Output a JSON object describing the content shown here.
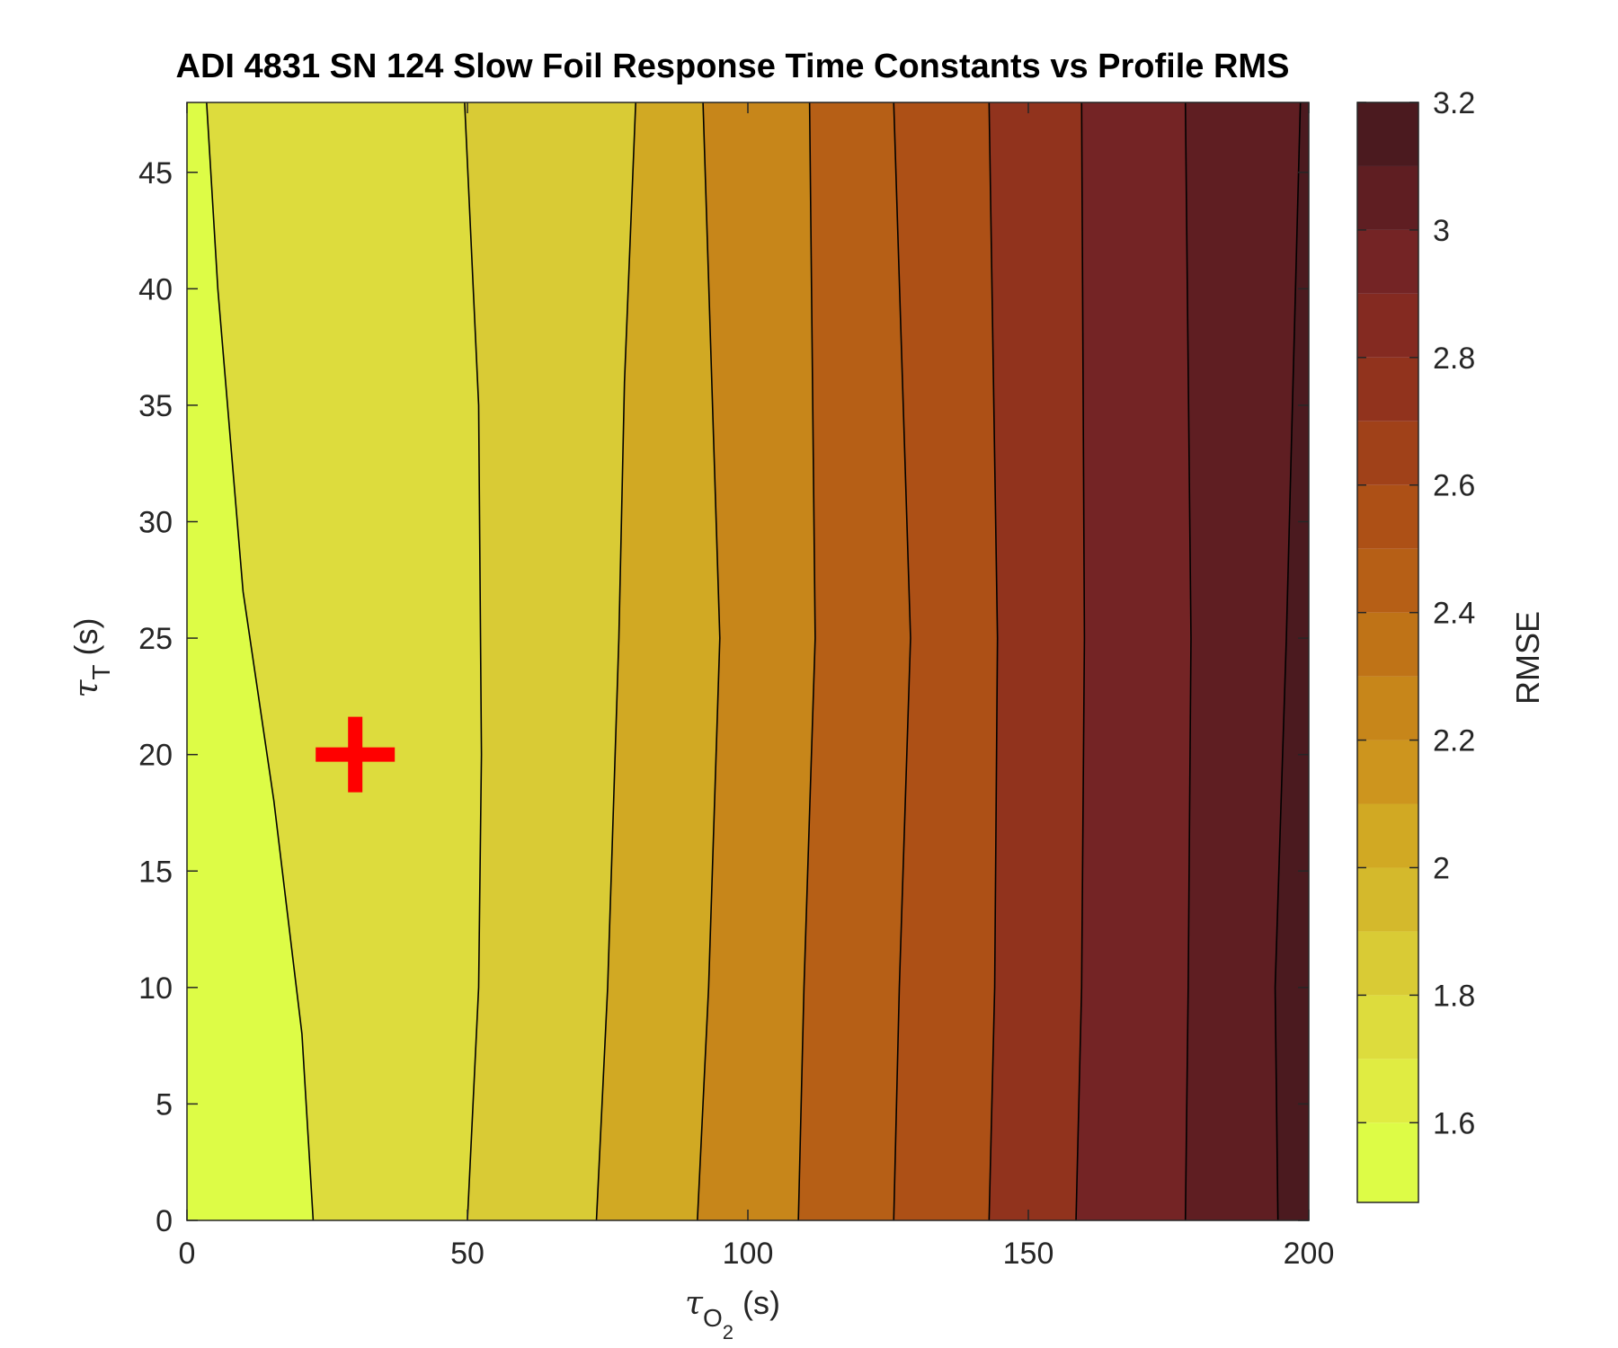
{
  "chart_data": {
    "type": "contour",
    "title": "ADI 4831 SN 124 Slow Foil Response Time Constants vs Profile RMS",
    "xlabel": {
      "symbol": "τ",
      "subscript": "O",
      "subsubscript": "2",
      "unit": " (s)"
    },
    "ylabel": {
      "symbol": "τ",
      "subscript": "T",
      "unit": " (s)"
    },
    "xlim": [
      0,
      200
    ],
    "ylim": [
      0,
      48
    ],
    "xticks": [
      0,
      50,
      100,
      150,
      200
    ],
    "yticks": [
      0,
      5,
      10,
      15,
      20,
      25,
      30,
      35,
      40,
      45
    ],
    "colorbar": {
      "label": "RMSE",
      "range": [
        1.475,
        3.2
      ],
      "ticks": [
        1.6,
        1.8,
        2,
        2.2,
        2.4,
        2.6,
        2.8,
        3,
        3.2
      ],
      "levels": [
        1.475,
        1.6,
        1.7,
        1.8,
        1.9,
        2.0,
        2.1,
        2.2,
        2.3,
        2.4,
        2.5,
        2.6,
        2.7,
        2.8,
        2.9,
        3.0,
        3.1,
        3.2
      ],
      "colors": [
        "#ddfc46",
        "#e0ec42",
        "#dddc3d",
        "#d9cb35",
        "#d4b92c",
        "#d1a923",
        "#cd951e",
        "#c7861a",
        "#bf7317",
        "#b65f16",
        "#ad5016",
        "#a04119",
        "#91331d",
        "#842a21",
        "#742425",
        "#5f1e22",
        "#4b1a1f",
        "#32151a"
      ]
    },
    "contours": [
      {
        "level": 1.55,
        "y": [
          0,
          8,
          18,
          27,
          40,
          48
        ],
        "x": [
          22.5,
          20.5,
          15.5,
          10,
          5.5,
          3.5
        ]
      },
      {
        "level": 1.7,
        "y": [
          0,
          10,
          20,
          35,
          48
        ],
        "x": [
          50,
          52,
          52.5,
          52,
          49.5
        ]
      },
      {
        "level": 1.85,
        "y": [
          0,
          10,
          25,
          36,
          48
        ],
        "x": [
          73,
          75,
          77,
          78,
          80
        ]
      },
      {
        "level": 2.0,
        "y": [
          0,
          10,
          25,
          48
        ],
        "x": [
          91,
          93,
          95,
          92
        ]
      },
      {
        "level": 2.15,
        "y": [
          0,
          10,
          25,
          48
        ],
        "x": [
          109,
          110,
          112,
          111
        ]
      },
      {
        "level": 2.3,
        "y": [
          0,
          10,
          25,
          48
        ],
        "x": [
          126,
          127,
          129,
          126
        ]
      },
      {
        "level": 2.45,
        "y": [
          0,
          10,
          25,
          48
        ],
        "x": [
          143,
          144,
          144.5,
          143
        ]
      },
      {
        "level": 2.6,
        "y": [
          0,
          10,
          25,
          48
        ],
        "x": [
          158.5,
          159.5,
          160,
          159.5
        ]
      },
      {
        "level": 2.75,
        "y": [
          0,
          10,
          25,
          48
        ],
        "x": [
          178,
          178.5,
          179,
          178
        ]
      },
      {
        "level": 2.9,
        "y": [
          0,
          10,
          25,
          48
        ],
        "x": [
          194.5,
          194,
          196,
          198.5
        ]
      }
    ],
    "marker": {
      "type": "plus",
      "color": "#ff0000",
      "x": 30,
      "y": 20
    }
  }
}
